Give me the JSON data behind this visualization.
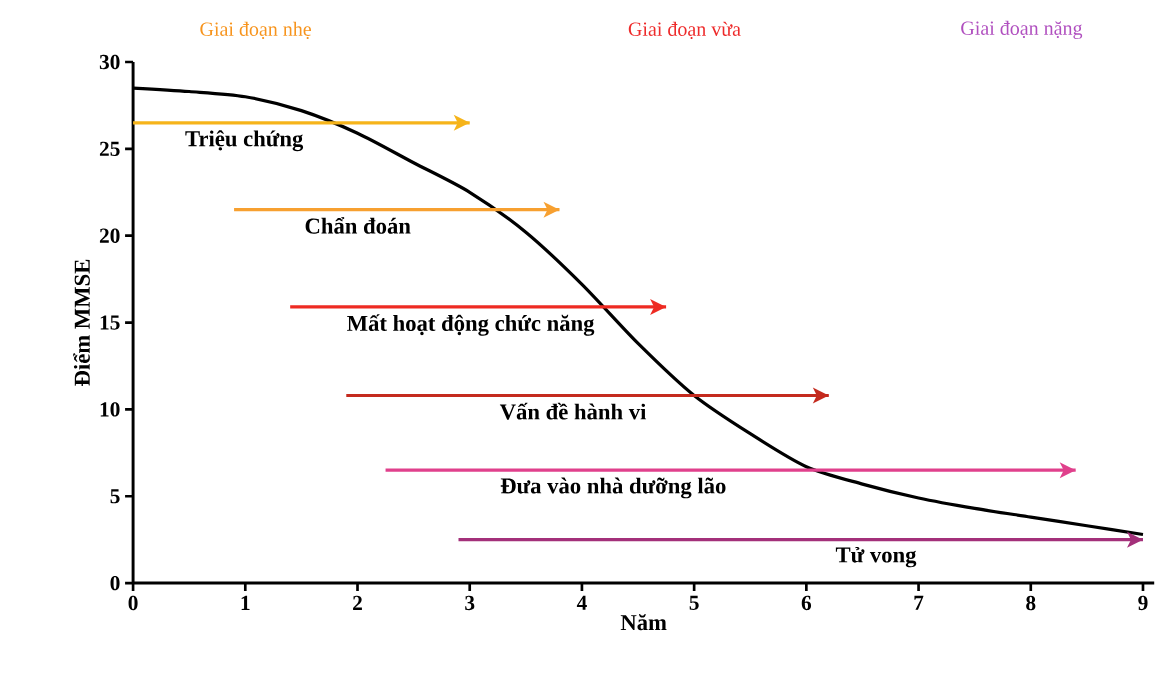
{
  "chart_data": {
    "type": "line",
    "xlabel": "Năm",
    "ylabel": "Điểm MMSE",
    "annotations": [
      "Giai đoạn nhẹ",
      "Giai đoạn vừa",
      "Giai đoạn nặng"
    ],
    "xlim": [
      0,
      9.1
    ],
    "xticks": [
      0,
      1,
      2,
      3,
      4,
      5,
      6,
      7,
      8,
      9
    ],
    "ylim": [
      0,
      30
    ],
    "yticks": [
      0,
      5,
      10,
      15,
      20,
      25,
      30
    ],
    "series": [
      {
        "color": "#000000",
        "x": [
          0,
          0.5,
          1,
          1.5,
          2,
          2.5,
          3,
          3.5,
          4,
          4.5,
          5,
          5.5,
          6,
          6.5,
          7,
          7.5,
          8,
          8.5,
          9
        ],
        "values": [
          28.5,
          28.3,
          28.0,
          27.2,
          25.9,
          24.2,
          22.5,
          20.2,
          17.2,
          13.8,
          10.8,
          8.6,
          6.7,
          5.7,
          4.9,
          4.3,
          3.8,
          3.3,
          2.8
        ]
      },
      {
        "name": "Triệu chứng",
        "color": "#f6b41a",
        "x": [
          0,
          3
        ],
        "values": [
          26.5,
          26.5
        ]
      },
      {
        "name": "Chẩn đoán",
        "color": "#f7a030",
        "x": [
          0.9,
          3.8
        ],
        "values": [
          21.5,
          21.5
        ]
      },
      {
        "name": "Mất hoạt động chức năng",
        "color": "#ee2a22",
        "x": [
          1.4,
          4.75
        ],
        "values": [
          15.9,
          15.9
        ]
      },
      {
        "name": "Vấn đề hành vi",
        "color": "#c42a1e",
        "x": [
          1.9,
          6.2
        ],
        "values": [
          10.8,
          10.8
        ]
      },
      {
        "name": "Đưa vào nhà dưỡng lão",
        "color": "#e0408c",
        "x": [
          2.25,
          8.4
        ],
        "values": [
          6.5,
          6.5
        ]
      },
      {
        "name": "Tử vong",
        "color": "#a3307a",
        "x": [
          2.9,
          9.0
        ],
        "values": [
          2.5,
          2.5
        ]
      }
    ]
  }
}
